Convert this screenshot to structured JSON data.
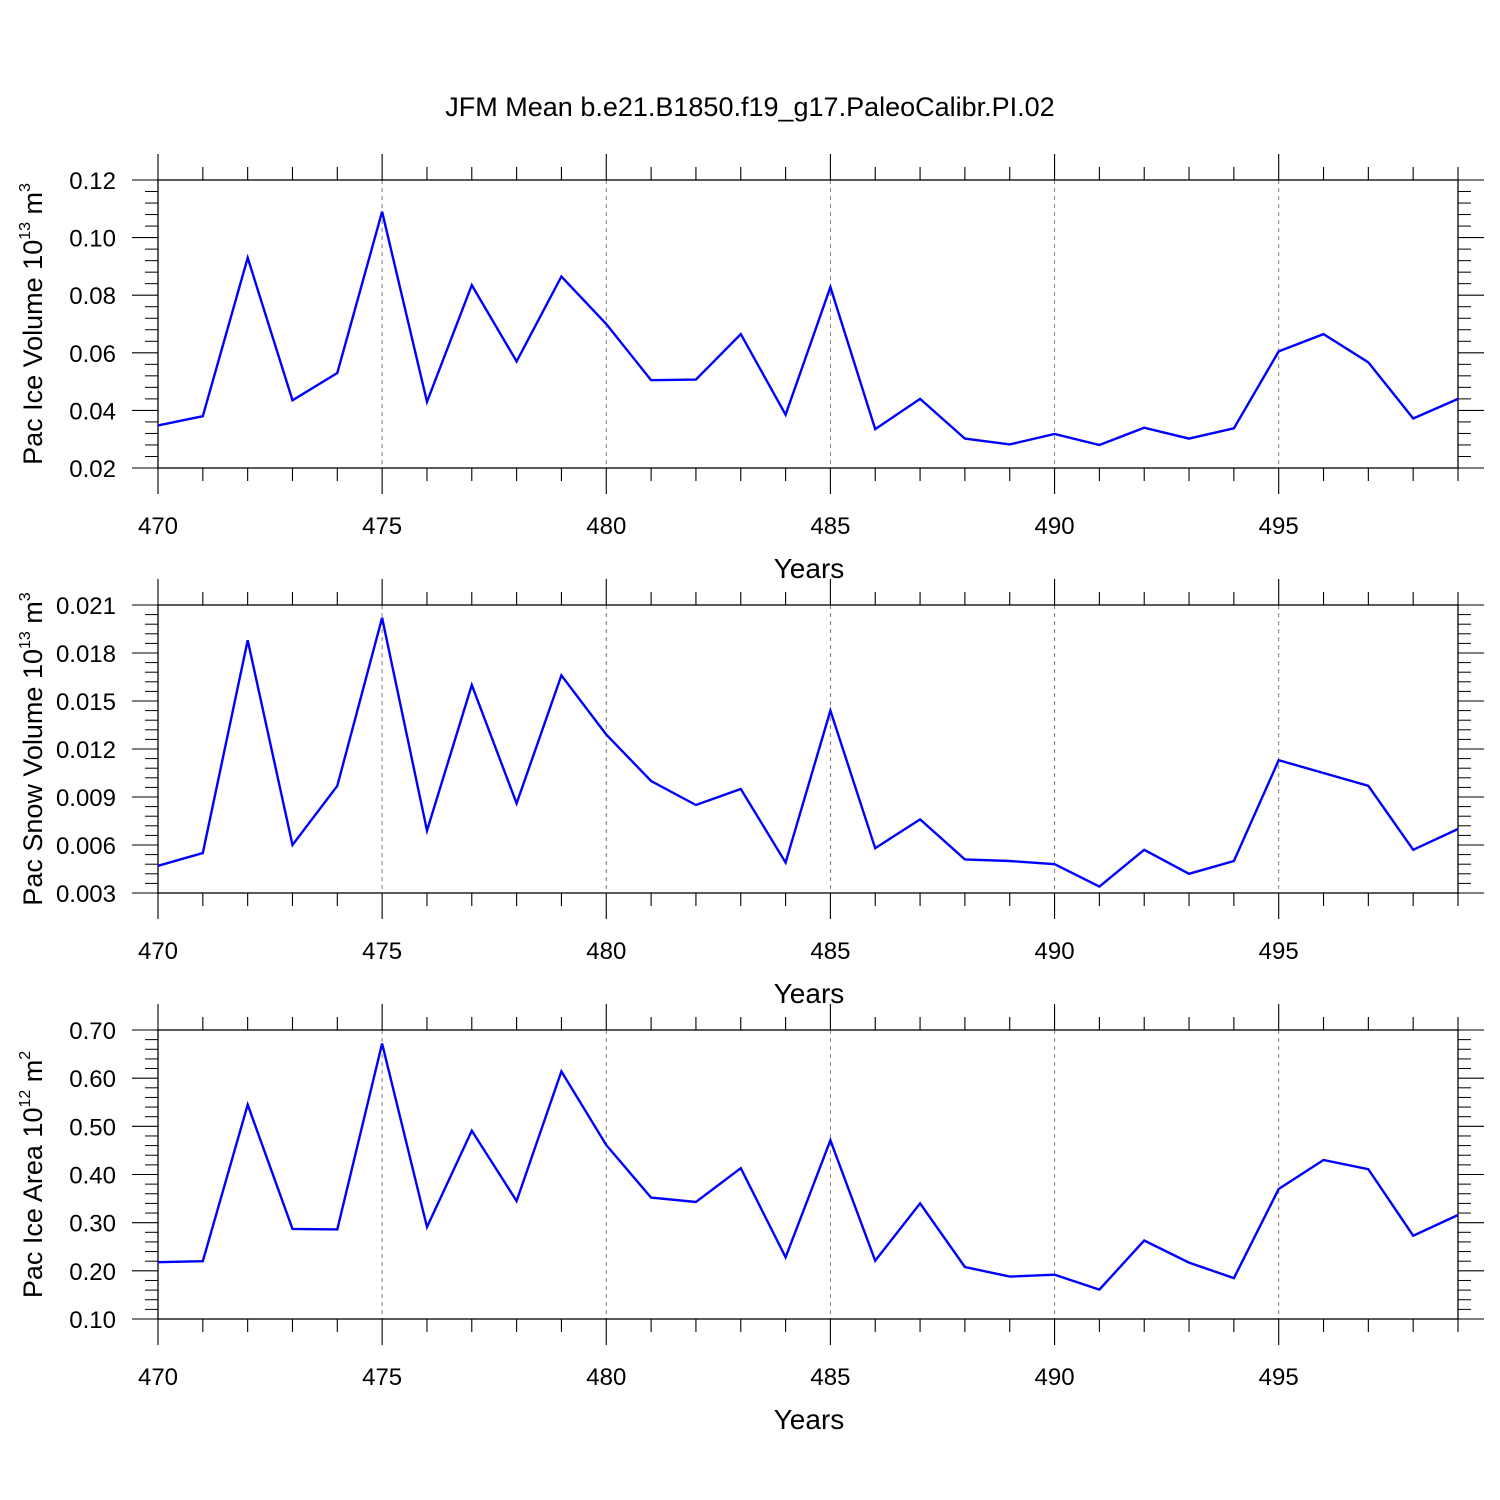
{
  "title": "JFM Mean b.e21.B1850.f19_g17.PaleoCalibr.PI.02",
  "colors": {
    "line": "#0000ff",
    "axis": "#000000",
    "grid": "#808080",
    "background": "#ffffff"
  },
  "chart_data": [
    {
      "type": "line",
      "title": "JFM Mean b.e21.B1850.f19_g17.PaleoCalibr.PI.02",
      "xlabel": "Years",
      "ylabel": {
        "text": "Pac Ice Volume 10",
        "sup": "13",
        "unit": " m",
        "unit_sup": "3"
      },
      "xlim": [
        470,
        499
      ],
      "ylim": [
        0.02,
        0.12
      ],
      "yticks": [
        0.02,
        0.04,
        0.06,
        0.08,
        0.1,
        0.12
      ],
      "ytick_labels": [
        "0.02",
        "0.04",
        "0.06",
        "0.08",
        "0.10",
        "0.12"
      ],
      "xticks": [
        470,
        475,
        480,
        485,
        490,
        495
      ],
      "xtick_labels": [
        "470",
        "475",
        "480",
        "485",
        "490",
        "495"
      ],
      "grid": "dashed vertical at major x ticks",
      "x": [
        470,
        471,
        472,
        473,
        474,
        475,
        476,
        477,
        478,
        479,
        480,
        481,
        482,
        483,
        484,
        485,
        486,
        487,
        488,
        489,
        490,
        491,
        492,
        493,
        494,
        495,
        496,
        497,
        498,
        499
      ],
      "series": [
        {
          "name": "Pac Ice Volume",
          "values": [
            0.0348,
            0.038,
            0.093,
            0.0435,
            0.053,
            0.109,
            0.043,
            0.0835,
            0.057,
            0.0865,
            0.07,
            0.0505,
            0.0507,
            0.0665,
            0.0385,
            0.0828,
            0.0335,
            0.044,
            0.0302,
            0.0282,
            0.0318,
            0.028,
            0.034,
            0.0302,
            0.0338,
            0.0605,
            0.0665,
            0.0567,
            0.0372,
            0.044
          ]
        }
      ]
    },
    {
      "type": "line",
      "xlabel": "Years",
      "ylabel": {
        "text": "Pac Snow Volume 10",
        "sup": "13",
        "unit": " m",
        "unit_sup": "3"
      },
      "xlim": [
        470,
        499
      ],
      "ylim": [
        0.003,
        0.021
      ],
      "yticks": [
        0.003,
        0.006,
        0.009,
        0.012,
        0.015,
        0.018,
        0.021
      ],
      "ytick_labels": [
        "0.003",
        "0.006",
        "0.009",
        "0.012",
        "0.015",
        "0.018",
        "0.021"
      ],
      "xticks": [
        470,
        475,
        480,
        485,
        490,
        495
      ],
      "xtick_labels": [
        "470",
        "475",
        "480",
        "485",
        "490",
        "495"
      ],
      "grid": "dashed vertical at major x ticks",
      "x": [
        470,
        471,
        472,
        473,
        474,
        475,
        476,
        477,
        478,
        479,
        480,
        481,
        482,
        483,
        484,
        485,
        486,
        487,
        488,
        489,
        490,
        491,
        492,
        493,
        494,
        495,
        496,
        497,
        498,
        499
      ],
      "series": [
        {
          "name": "Pac Snow Volume",
          "values": [
            0.0047,
            0.0055,
            0.0188,
            0.006,
            0.0097,
            0.0202,
            0.0069,
            0.016,
            0.0086,
            0.0166,
            0.0129,
            0.01,
            0.0085,
            0.0095,
            0.0049,
            0.0144,
            0.0058,
            0.0076,
            0.0051,
            0.005,
            0.0048,
            0.0034,
            0.0057,
            0.0042,
            0.005,
            0.0113,
            0.0105,
            0.0097,
            0.0057,
            0.007
          ]
        }
      ]
    },
    {
      "type": "line",
      "xlabel": "Years",
      "ylabel": {
        "text": "Pac Ice Area 10",
        "sup": "12",
        "unit": " m",
        "unit_sup": "2"
      },
      "xlim": [
        470,
        499
      ],
      "ylim": [
        0.1,
        0.7
      ],
      "yticks": [
        0.1,
        0.2,
        0.3,
        0.4,
        0.5,
        0.6,
        0.7
      ],
      "ytick_labels": [
        "0.10",
        "0.20",
        "0.30",
        "0.40",
        "0.50",
        "0.60",
        "0.70"
      ],
      "xticks": [
        470,
        475,
        480,
        485,
        490,
        495
      ],
      "xtick_labels": [
        "470",
        "475",
        "480",
        "485",
        "490",
        "495"
      ],
      "grid": "dashed vertical at major x ticks",
      "x": [
        470,
        471,
        472,
        473,
        474,
        475,
        476,
        477,
        478,
        479,
        480,
        481,
        482,
        483,
        484,
        485,
        486,
        487,
        488,
        489,
        490,
        491,
        492,
        493,
        494,
        495,
        496,
        497,
        498,
        499
      ],
      "series": [
        {
          "name": "Pac Ice Area",
          "values": [
            0.218,
            0.22,
            0.545,
            0.287,
            0.286,
            0.672,
            0.291,
            0.491,
            0.345,
            0.614,
            0.461,
            0.352,
            0.343,
            0.413,
            0.228,
            0.471,
            0.221,
            0.34,
            0.208,
            0.188,
            0.192,
            0.161,
            0.263,
            0.217,
            0.185,
            0.37,
            0.43,
            0.411,
            0.273,
            0.316
          ]
        }
      ]
    }
  ]
}
